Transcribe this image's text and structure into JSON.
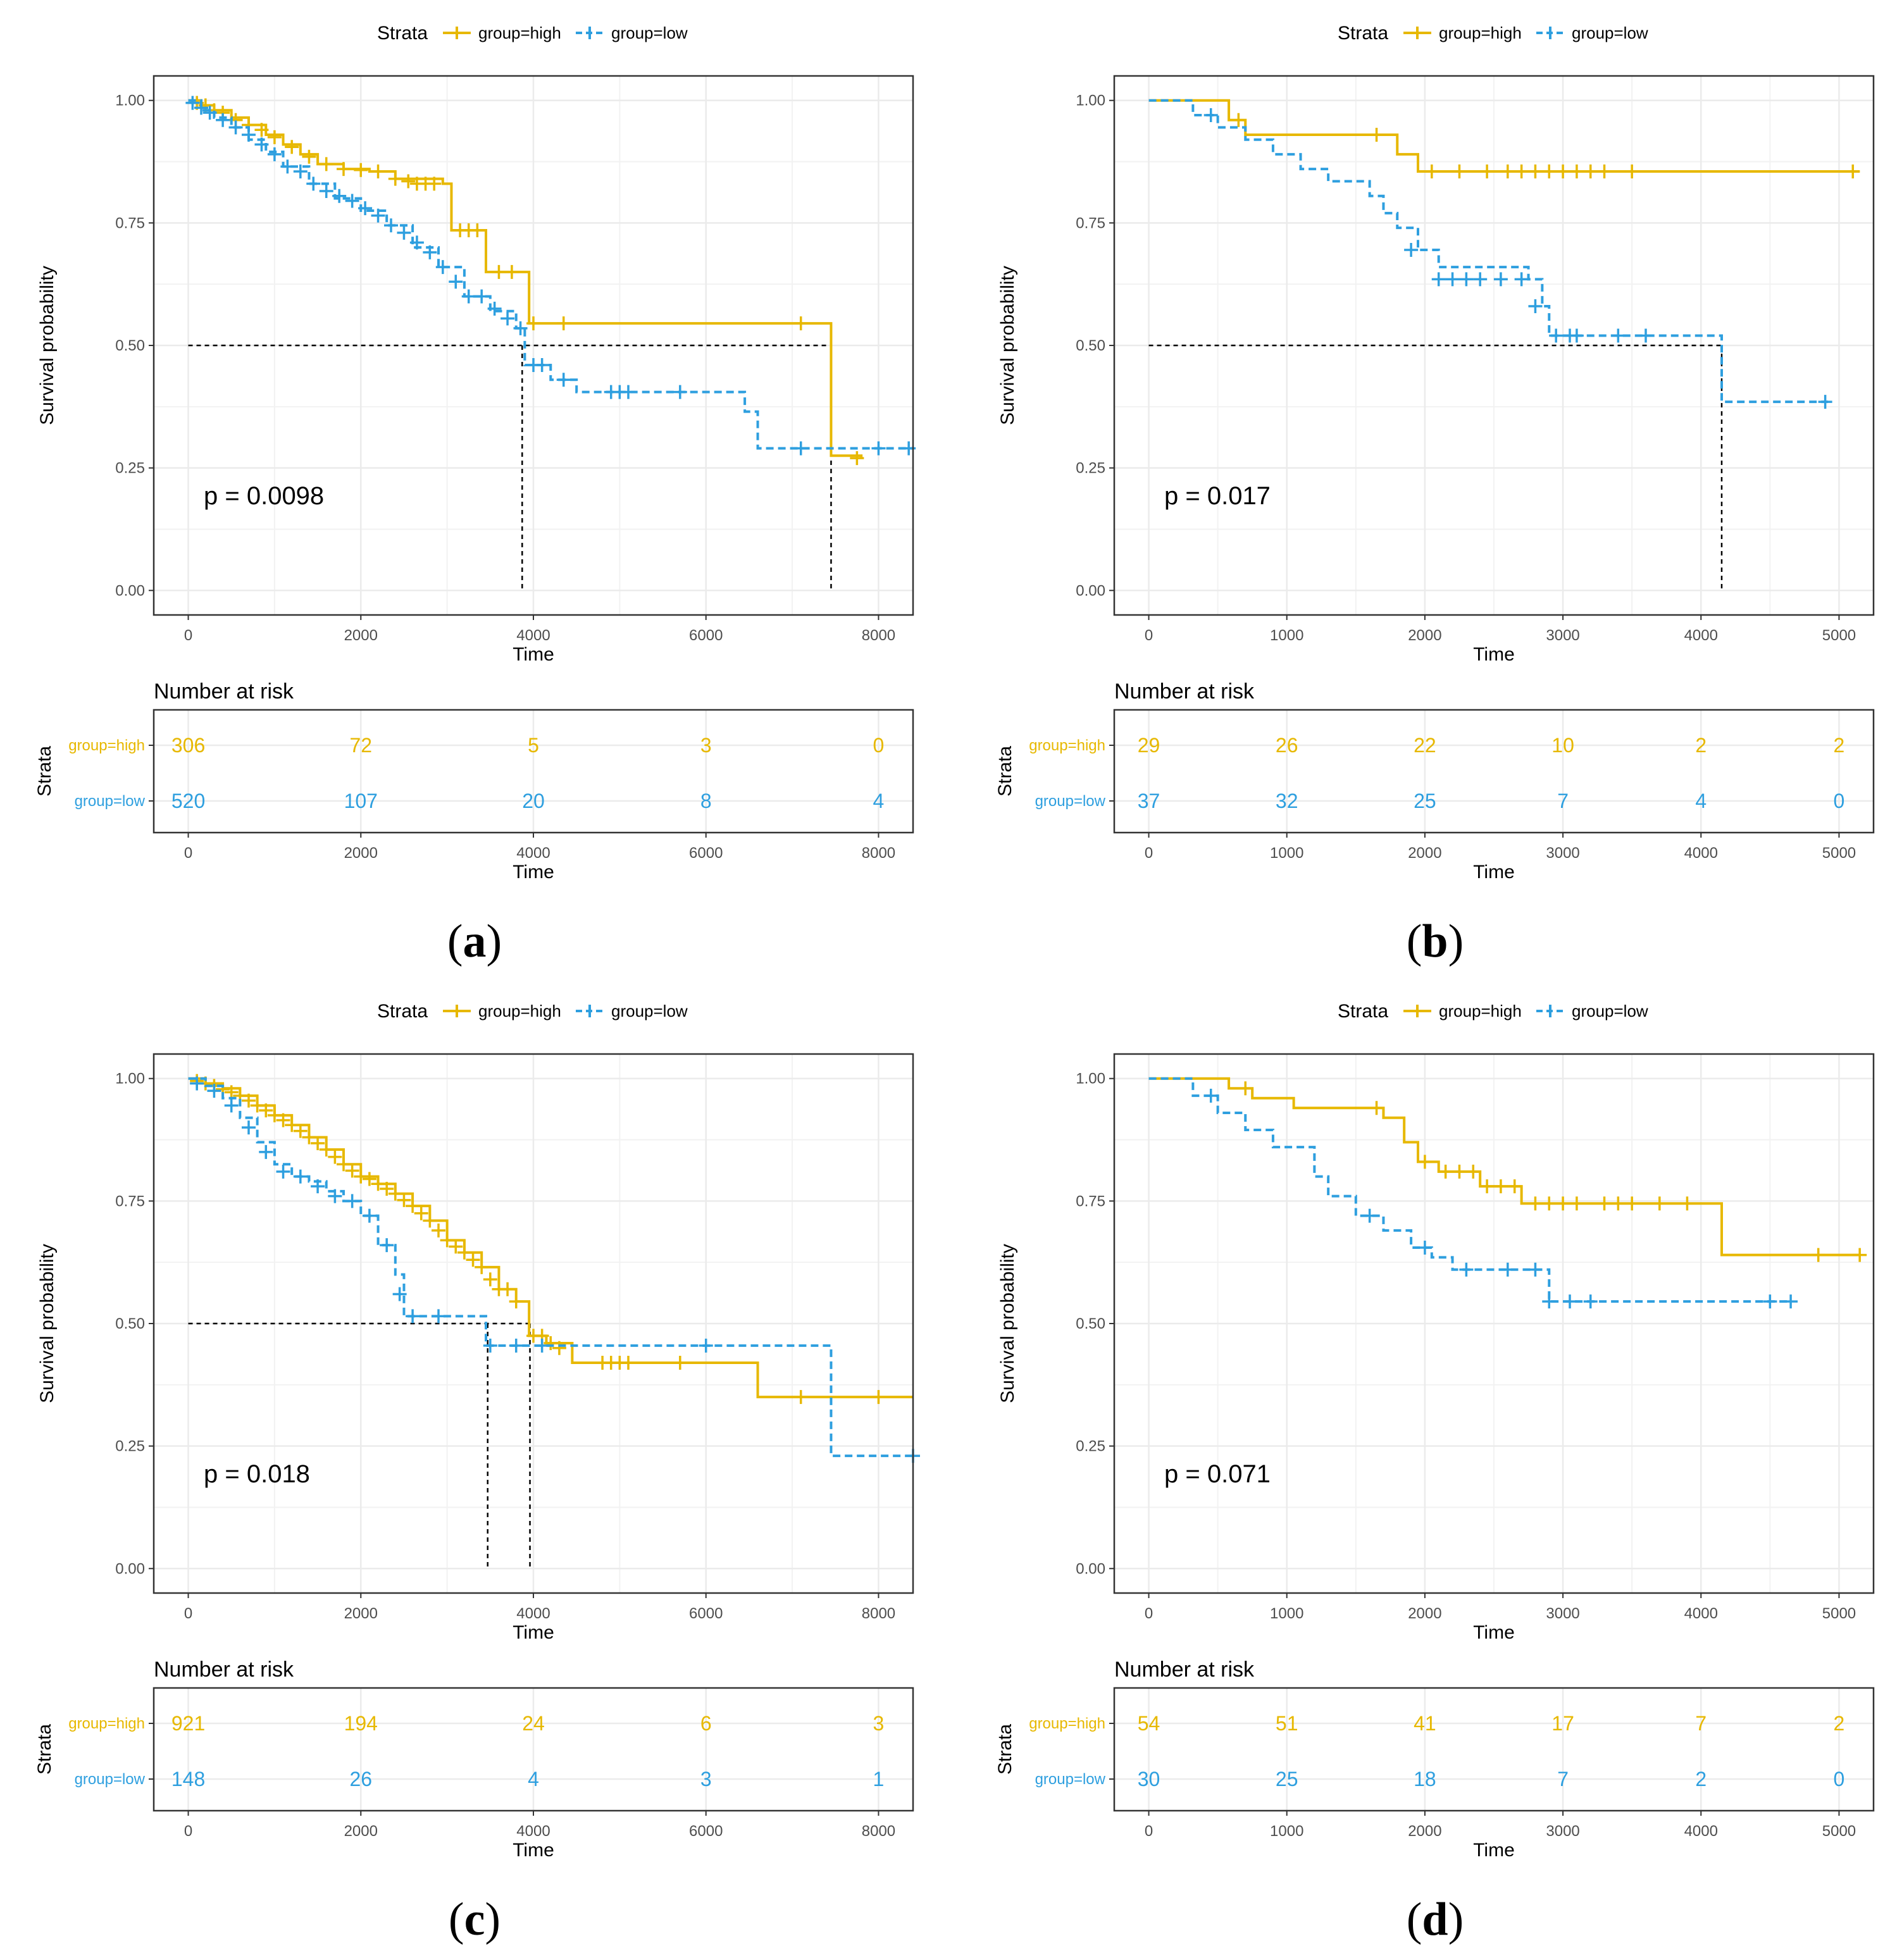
{
  "colors": {
    "high": "#E7B800",
    "low": "#2E9FDF",
    "grid": "#EBEBEB",
    "axis": "#333333",
    "median": "#000000"
  },
  "legend": {
    "title": "Strata",
    "high": "group=high",
    "low": "group=low"
  },
  "labels": {
    "time": "Time",
    "survival": "Survival probability",
    "number_at_risk": "Number at risk",
    "strata": "Strata"
  },
  "chart_data": [
    {
      "type": "line",
      "panel": "a",
      "panel_label": "(a)",
      "pvalue": "p = 0.0098",
      "xlim": [
        -400,
        8400
      ],
      "ylim": [
        -0.05,
        1.05
      ],
      "xticks": [
        0,
        2000,
        4000,
        6000,
        8000
      ],
      "xtick_labels": [
        "0",
        "2000",
        "4000",
        "6000",
        "8000"
      ],
      "yticks": [
        0,
        0.25,
        0.5,
        0.75,
        1
      ],
      "ytick_labels": [
        "0.00",
        "0.25",
        "0.50",
        "0.75",
        "1.00"
      ],
      "series": [
        {
          "name": "group=high",
          "x": [
            0,
            150,
            300,
            500,
            700,
            900,
            1100,
            1300,
            1500,
            1800,
            2100,
            2400,
            2950,
            3050,
            3450,
            3950,
            7450,
            7800
          ],
          "y": [
            1,
            0.99,
            0.98,
            0.965,
            0.95,
            0.93,
            0.91,
            0.89,
            0.87,
            0.86,
            0.855,
            0.84,
            0.83,
            0.735,
            0.65,
            0.545,
            0.275,
            0.27
          ],
          "censor_x": [
            100,
            200,
            300,
            400,
            550,
            700,
            850,
            1000,
            1200,
            1400,
            1600,
            1800,
            2000,
            2200,
            2400,
            2550,
            2650,
            2750,
            2850,
            3150,
            3250,
            3350,
            3600,
            3750,
            4000,
            4350,
            7100,
            7750
          ],
          "censor_y": [
            0.995,
            0.99,
            0.98,
            0.975,
            0.96,
            0.95,
            0.94,
            0.925,
            0.905,
            0.885,
            0.87,
            0.86,
            0.858,
            0.855,
            0.84,
            0.835,
            0.83,
            0.83,
            0.83,
            0.735,
            0.735,
            0.735,
            0.65,
            0.65,
            0.545,
            0.545,
            0.545,
            0.27
          ]
        },
        {
          "name": "group=low",
          "x": [
            0,
            150,
            300,
            500,
            700,
            900,
            1100,
            1400,
            1700,
            2000,
            2300,
            2600,
            2900,
            3200,
            3500,
            3800,
            3900,
            4200,
            4500,
            6450,
            6600,
            8400
          ],
          "y": [
            1,
            0.98,
            0.965,
            0.945,
            0.92,
            0.895,
            0.865,
            0.83,
            0.8,
            0.775,
            0.745,
            0.7,
            0.66,
            0.6,
            0.57,
            0.535,
            0.46,
            0.43,
            0.405,
            0.365,
            0.29,
            0.29
          ],
          "censor_x": [
            50,
            150,
            250,
            400,
            550,
            700,
            850,
            1000,
            1150,
            1300,
            1450,
            1600,
            1750,
            1900,
            2050,
            2200,
            2350,
            2500,
            2650,
            2800,
            2950,
            3100,
            3250,
            3400,
            3550,
            3700,
            3850,
            4000,
            4100,
            4350,
            4900,
            5000,
            5100,
            5700,
            7100,
            8000,
            8350
          ],
          "censor_y": [
            0.995,
            0.985,
            0.975,
            0.96,
            0.945,
            0.93,
            0.91,
            0.89,
            0.865,
            0.855,
            0.83,
            0.815,
            0.805,
            0.795,
            0.78,
            0.765,
            0.745,
            0.73,
            0.71,
            0.69,
            0.66,
            0.63,
            0.6,
            0.6,
            0.575,
            0.555,
            0.535,
            0.46,
            0.46,
            0.43,
            0.405,
            0.405,
            0.405,
            0.405,
            0.29,
            0.29,
            0.29
          ]
        }
      ],
      "medians": [
        3870,
        7450
      ],
      "risk_table": {
        "x": [
          0,
          2000,
          4000,
          6000,
          8000
        ],
        "high": [
          "306",
          "72",
          "5",
          "3",
          "0"
        ],
        "low": [
          "520",
          "107",
          "20",
          "8",
          "4"
        ]
      }
    },
    {
      "type": "line",
      "panel": "b",
      "panel_label": "(b)",
      "pvalue": "p = 0.017",
      "xlim": [
        -250,
        5250
      ],
      "ylim": [
        -0.05,
        1.05
      ],
      "xticks": [
        0,
        1000,
        2000,
        3000,
        4000,
        5000
      ],
      "xtick_labels": [
        "0",
        "1000",
        "2000",
        "3000",
        "4000",
        "5000"
      ],
      "yticks": [
        0,
        0.25,
        0.5,
        0.75,
        1
      ],
      "ytick_labels": [
        "0.00",
        "0.25",
        "0.50",
        "0.75",
        "1.00"
      ],
      "series": [
        {
          "name": "group=high",
          "x": [
            0,
            580,
            700,
            1800,
            1950,
            5150
          ],
          "y": [
            1,
            0.96,
            0.93,
            0.89,
            0.855,
            0.855
          ],
          "censor_x": [
            650,
            1650,
            2050,
            2250,
            2450,
            2600,
            2700,
            2800,
            2900,
            3000,
            3100,
            3200,
            3300,
            3500,
            5100
          ],
          "censor_y": [
            0.96,
            0.93,
            0.855,
            0.855,
            0.855,
            0.855,
            0.855,
            0.855,
            0.855,
            0.855,
            0.855,
            0.855,
            0.855,
            0.855,
            0.855
          ]
        },
        {
          "name": "group=low",
          "x": [
            0,
            320,
            500,
            700,
            900,
            1100,
            1300,
            1600,
            1700,
            1800,
            1950,
            2100,
            2750,
            2850,
            2900,
            3050,
            4150,
            4920
          ],
          "y": [
            1,
            0.97,
            0.945,
            0.92,
            0.89,
            0.86,
            0.835,
            0.805,
            0.77,
            0.74,
            0.695,
            0.66,
            0.635,
            0.58,
            0.52,
            0.52,
            0.385,
            0.385
          ],
          "censor_x": [
            450,
            1900,
            2100,
            2200,
            2300,
            2400,
            2550,
            2700,
            2800,
            2950,
            3050,
            3100,
            3400,
            3600,
            4900
          ],
          "censor_y": [
            0.97,
            0.695,
            0.635,
            0.635,
            0.635,
            0.635,
            0.635,
            0.635,
            0.58,
            0.52,
            0.52,
            0.52,
            0.52,
            0.52,
            0.385
          ]
        }
      ],
      "medians": [
        4150
      ],
      "risk_table": {
        "x": [
          0,
          1000,
          2000,
          3000,
          4000,
          5000
        ],
        "high": [
          "29",
          "26",
          "22",
          "10",
          "2",
          "2"
        ],
        "low": [
          "37",
          "32",
          "25",
          "7",
          "4",
          "0"
        ]
      }
    },
    {
      "type": "line",
      "panel": "c",
      "panel_label": "(c)",
      "pvalue": "p = 0.018",
      "xlim": [
        -400,
        8400
      ],
      "ylim": [
        -0.05,
        1.05
      ],
      "xticks": [
        0,
        2000,
        4000,
        6000,
        8000
      ],
      "xtick_labels": [
        "0",
        "2000",
        "4000",
        "6000",
        "8000"
      ],
      "yticks": [
        0,
        0.25,
        0.5,
        0.75,
        1
      ],
      "ytick_labels": [
        "0.00",
        "0.25",
        "0.50",
        "0.75",
        "1.00"
      ],
      "series": [
        {
          "name": "group=high",
          "x": [
            0,
            200,
            400,
            600,
            800,
            1000,
            1200,
            1400,
            1600,
            1800,
            2000,
            2200,
            2400,
            2600,
            2800,
            3000,
            3200,
            3400,
            3600,
            3800,
            3950,
            4150,
            4450,
            6600,
            8400
          ],
          "y": [
            1,
            0.99,
            0.98,
            0.965,
            0.945,
            0.925,
            0.905,
            0.88,
            0.855,
            0.825,
            0.8,
            0.785,
            0.765,
            0.74,
            0.71,
            0.67,
            0.645,
            0.615,
            0.57,
            0.545,
            0.475,
            0.46,
            0.42,
            0.35,
            0.35
          ],
          "censor_x": [
            100,
            200,
            300,
            400,
            500,
            600,
            700,
            800,
            900,
            1000,
            1100,
            1200,
            1300,
            1400,
            1500,
            1600,
            1700,
            1800,
            1900,
            2000,
            2100,
            2200,
            2300,
            2400,
            2500,
            2600,
            2700,
            2800,
            2900,
            3000,
            3100,
            3200,
            3300,
            3400,
            3500,
            3600,
            3700,
            3800,
            4000,
            4100,
            4200,
            4300,
            4800,
            4900,
            5000,
            5100,
            5700,
            7100,
            8000
          ],
          "censor_y": [
            0.995,
            0.99,
            0.985,
            0.978,
            0.972,
            0.965,
            0.955,
            0.945,
            0.935,
            0.925,
            0.915,
            0.905,
            0.893,
            0.88,
            0.868,
            0.855,
            0.84,
            0.825,
            0.812,
            0.8,
            0.795,
            0.785,
            0.775,
            0.765,
            0.752,
            0.74,
            0.725,
            0.71,
            0.69,
            0.67,
            0.657,
            0.645,
            0.63,
            0.615,
            0.59,
            0.57,
            0.57,
            0.545,
            0.475,
            0.475,
            0.46,
            0.45,
            0.42,
            0.42,
            0.42,
            0.42,
            0.42,
            0.35,
            0.35
          ]
        },
        {
          "name": "group=low",
          "x": [
            0,
            200,
            400,
            600,
            800,
            1000,
            1200,
            1400,
            1600,
            1800,
            2000,
            2200,
            2400,
            2500,
            3450,
            7450,
            8400
          ],
          "y": [
            1,
            0.985,
            0.96,
            0.92,
            0.87,
            0.825,
            0.8,
            0.79,
            0.77,
            0.75,
            0.72,
            0.66,
            0.6,
            0.515,
            0.455,
            0.23,
            0.23
          ],
          "censor_x": [
            100,
            300,
            500,
            700,
            900,
            1100,
            1300,
            1500,
            1700,
            1900,
            2100,
            2300,
            2450,
            2600,
            2900,
            3500,
            3800,
            4100,
            6000,
            8400
          ],
          "censor_y": [
            0.99,
            0.975,
            0.945,
            0.9,
            0.85,
            0.81,
            0.8,
            0.78,
            0.76,
            0.75,
            0.72,
            0.66,
            0.56,
            0.515,
            0.515,
            0.455,
            0.455,
            0.455,
            0.455,
            0.23
          ]
        }
      ],
      "medians": [
        3470,
        3960
      ],
      "risk_table": {
        "x": [
          0,
          2000,
          4000,
          6000,
          8000
        ],
        "high": [
          "921",
          "194",
          "24",
          "6",
          "3"
        ],
        "low": [
          "148",
          "26",
          "4",
          "3",
          "1"
        ]
      }
    },
    {
      "type": "line",
      "panel": "d",
      "panel_label": "(d)",
      "pvalue": "p = 0.071",
      "xlim": [
        -250,
        5250
      ],
      "ylim": [
        -0.05,
        1.05
      ],
      "xticks": [
        0,
        1000,
        2000,
        3000,
        4000,
        5000
      ],
      "xtick_labels": [
        "0",
        "1000",
        "2000",
        "3000",
        "4000",
        "5000"
      ],
      "yticks": [
        0,
        0.25,
        0.5,
        0.75,
        1
      ],
      "ytick_labels": [
        "0.00",
        "0.25",
        "0.50",
        "0.75",
        "1.00"
      ],
      "series": [
        {
          "name": "group=high",
          "x": [
            0,
            580,
            750,
            1050,
            1700,
            1850,
            1950,
            2100,
            2400,
            2700,
            4150,
            5150
          ],
          "y": [
            1,
            0.98,
            0.96,
            0.94,
            0.92,
            0.87,
            0.83,
            0.81,
            0.78,
            0.745,
            0.64,
            0.64
          ],
          "censor_x": [
            700,
            1650,
            2000,
            2150,
            2250,
            2350,
            2450,
            2550,
            2650,
            2800,
            2900,
            3000,
            3100,
            3300,
            3400,
            3500,
            3700,
            3900,
            4850,
            5150
          ],
          "censor_y": [
            0.98,
            0.94,
            0.83,
            0.81,
            0.81,
            0.81,
            0.78,
            0.78,
            0.78,
            0.745,
            0.745,
            0.745,
            0.745,
            0.745,
            0.745,
            0.745,
            0.745,
            0.745,
            0.64,
            0.64
          ]
        },
        {
          "name": "group=low",
          "x": [
            0,
            320,
            500,
            700,
            900,
            1200,
            1300,
            1500,
            1700,
            1900,
            2050,
            2200,
            2850,
            2900,
            4650
          ],
          "y": [
            1,
            0.965,
            0.93,
            0.895,
            0.86,
            0.8,
            0.76,
            0.72,
            0.69,
            0.655,
            0.635,
            0.61,
            0.61,
            0.545,
            0.545
          ],
          "censor_x": [
            450,
            1600,
            2000,
            2300,
            2600,
            2800,
            2900,
            3050,
            3200,
            4500,
            4650
          ],
          "censor_y": [
            0.965,
            0.72,
            0.655,
            0.61,
            0.61,
            0.61,
            0.545,
            0.545,
            0.545,
            0.545,
            0.545
          ]
        }
      ],
      "medians": [],
      "risk_table": {
        "x": [
          0,
          1000,
          2000,
          3000,
          4000,
          5000
        ],
        "high": [
          "54",
          "51",
          "41",
          "17",
          "7",
          "2"
        ],
        "low": [
          "30",
          "25",
          "18",
          "7",
          "2",
          "0"
        ]
      }
    }
  ]
}
